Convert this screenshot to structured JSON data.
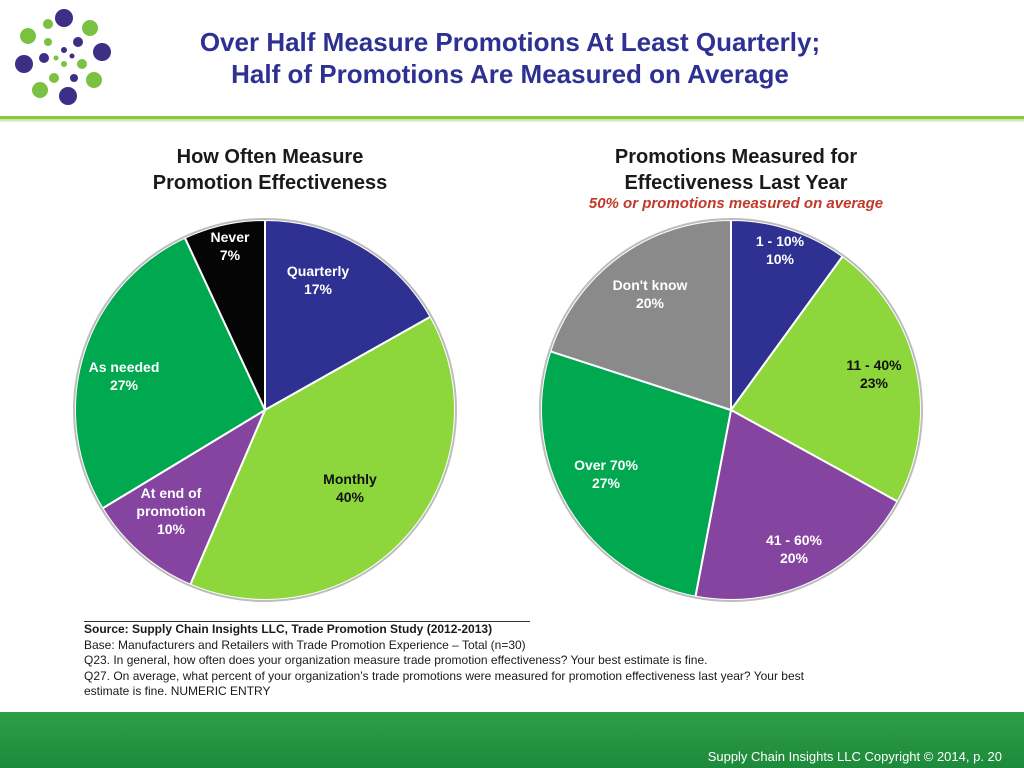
{
  "slide": {
    "title_line1": "Over Half Measure Promotions At Least Quarterly;",
    "title_line2": "Half of Promotions Are Measured on Average"
  },
  "colors": {
    "title": "#2e3192",
    "blue": "#2e3192",
    "lime": "#8dd63c",
    "purple": "#8644a1",
    "green": "#00a84f",
    "black": "#050505",
    "gray": "#8a8a8a",
    "subtitle_red": "#c0392b",
    "footer_green": "#1e8a3c"
  },
  "chart_data": [
    {
      "type": "pie",
      "title_line1": "How Often Measure",
      "title_line2": "Promotion Effectiveness",
      "slices": [
        {
          "label": "Quarterly",
          "value_label": "17%",
          "value": 17,
          "color": "#2e3192",
          "text_color": "#ffffff"
        },
        {
          "label": "Monthly",
          "value_label": "40%",
          "value": 40,
          "color": "#8dd63c",
          "text_color": "#111111"
        },
        {
          "label": "At end of promotion",
          "value_label": "10%",
          "value": 10,
          "color": "#8644a1",
          "text_color": "#ffffff"
        },
        {
          "label": "As needed",
          "value_label": "27%",
          "value": 27,
          "color": "#00a84f",
          "text_color": "#ffffff"
        },
        {
          "label": "Never",
          "value_label": "7%",
          "value": 7,
          "color": "#050505",
          "text_color": "#ffffff"
        }
      ]
    },
    {
      "type": "pie",
      "title_line1": "Promotions Measured for",
      "title_line2": "Effectiveness Last Year",
      "subtitle": "50% or promotions  measured on average",
      "slices": [
        {
          "label": "1 - 10%",
          "value_label": "10%",
          "value": 10,
          "color": "#2e3192",
          "text_color": "#ffffff"
        },
        {
          "label": "11 - 40%",
          "value_label": "23%",
          "value": 23,
          "color": "#8dd63c",
          "text_color": "#111111"
        },
        {
          "label": "41 - 60%",
          "value_label": "20%",
          "value": 20,
          "color": "#8644a1",
          "text_color": "#ffffff"
        },
        {
          "label": "Over 70%",
          "value_label": "27%",
          "value": 27,
          "color": "#00a84f",
          "text_color": "#ffffff"
        },
        {
          "label": "Don't know",
          "value_label": "20%",
          "value": 20,
          "color": "#8a8a8a",
          "text_color": "#ffffff"
        }
      ]
    }
  ],
  "source": {
    "line1": "Source:  Supply Chain Insights LLC, Trade Promotion Study (2012-2013)",
    "line2": "Base:  Manufacturers and Retailers with Trade Promotion Experience – Total (n=30)",
    "line3": "Q23. In general, how often does your organization measure trade promotion effectiveness? Your best estimate is fine.",
    "line4": "Q27. On average, what  percent of your organization’s trade promotions were measured for promotion effectiveness last year? Your best",
    "line5": "estimate is fine.  NUMERIC ENTRY"
  },
  "footer": {
    "copyright": "Supply Chain Insights LLC Copyright © 2014, p. 20"
  }
}
